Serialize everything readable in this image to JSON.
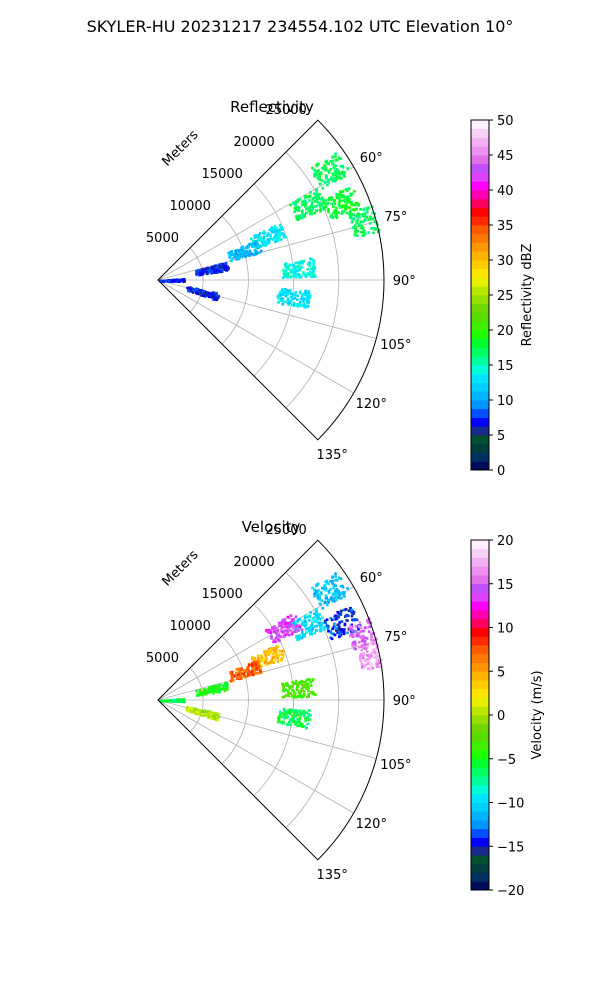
{
  "suptitle": "SKYLER-HU  20231217  234554.102 UTC Elevation 10°",
  "chart_data": [
    {
      "type": "ppi-sector",
      "title": "Reflectivity",
      "range_label": "Meters",
      "range_ticks": [
        5000,
        10000,
        15000,
        20000,
        25000
      ],
      "range_max_m": 25000,
      "azimuth_range_deg": [
        45,
        135
      ],
      "azimuth_ticks": [
        "60°",
        "75°",
        "90°",
        "105°",
        "120°",
        "135°"
      ],
      "grid": true,
      "colorbar": {
        "label": "Reflectivity dBZ",
        "min": 0,
        "max": 50,
        "ticks": [
          "0",
          "5",
          "10",
          "15",
          "20",
          "25",
          "30",
          "35",
          "40",
          "45",
          "50"
        ],
        "colors": [
          "#000d5a",
          "#00305f",
          "#003d3d",
          "#005030",
          "#1a2a8c",
          "#0000ff",
          "#0050ff",
          "#0096ff",
          "#00b4ff",
          "#00d0ff",
          "#00e4ff",
          "#00ffd8",
          "#00ff9c",
          "#00ff60",
          "#00ff2c",
          "#20ff00",
          "#40ee00",
          "#58dd00",
          "#70d800",
          "#96e000",
          "#bce800",
          "#e6f000",
          "#ffe600",
          "#ffcc00",
          "#ffb400",
          "#ff9600",
          "#ff7800",
          "#ff5a00",
          "#ff2a00",
          "#ff0000",
          "#ff0060",
          "#ff00b0",
          "#ff00ff",
          "#e040ff",
          "#c050ff",
          "#e070e8",
          "#ee90f0",
          "#f4b0f4",
          "#f8d0f8",
          "#fff0ff"
        ]
      },
      "echo_regions": [
        {
          "az_deg": 57,
          "range_m": 22500,
          "value": 17
        },
        {
          "az_deg": 63,
          "range_m": 18500,
          "value": 17
        },
        {
          "az_deg": 67,
          "range_m": 22000,
          "value": 18
        },
        {
          "az_deg": 74,
          "range_m": 24000,
          "value": 17
        },
        {
          "az_deg": 68,
          "range_m": 13000,
          "value": 13
        },
        {
          "az_deg": 71,
          "range_m": 10000,
          "value": 11
        },
        {
          "az_deg": 78,
          "range_m": 6000,
          "value": 7
        },
        {
          "az_deg": 85,
          "range_m": 15500,
          "value": 14
        },
        {
          "az_deg": 88,
          "range_m": 1000,
          "value": 7
        },
        {
          "az_deg": 97,
          "range_m": 15000,
          "value": 13
        },
        {
          "az_deg": 105,
          "range_m": 5000,
          "value": 7
        }
      ]
    },
    {
      "type": "ppi-sector",
      "title": "Velocity",
      "range_label": "Meters",
      "range_ticks": [
        5000,
        10000,
        15000,
        20000,
        25000
      ],
      "range_max_m": 25000,
      "azimuth_range_deg": [
        45,
        135
      ],
      "azimuth_ticks": [
        "60°",
        "75°",
        "90°",
        "105°",
        "120°",
        "135°"
      ],
      "grid": true,
      "colorbar": {
        "label": "Velocity (m/s)",
        "min": -20,
        "max": 20,
        "ticks": [
          "−20",
          "−15",
          "−10",
          "−5",
          "0",
          "5",
          "10",
          "15",
          "20"
        ],
        "colors": [
          "#000d5a",
          "#00305f",
          "#003d3d",
          "#005030",
          "#1a2a8c",
          "#0000ff",
          "#0050ff",
          "#0096ff",
          "#00b4ff",
          "#00d0ff",
          "#00e4ff",
          "#00ffd8",
          "#00ff9c",
          "#00ff60",
          "#00ff2c",
          "#20ff00",
          "#40ee00",
          "#58dd00",
          "#70d800",
          "#96e000",
          "#bce800",
          "#e6f000",
          "#ffe600",
          "#ffcc00",
          "#ffb400",
          "#ff9600",
          "#ff7800",
          "#ff5a00",
          "#ff2a00",
          "#ff0000",
          "#ff0060",
          "#ff00b0",
          "#ff00ff",
          "#e040ff",
          "#c050ff",
          "#e070e8",
          "#ee90f0",
          "#f4b0f4",
          "#f8d0f8",
          "#fff0ff"
        ]
      },
      "echo_regions": [
        {
          "az_deg": 57,
          "range_m": 22500,
          "value": -11
        },
        {
          "az_deg": 63,
          "range_m": 18500,
          "value": -10
        },
        {
          "az_deg": 60,
          "range_m": 16000,
          "value": 14
        },
        {
          "az_deg": 67,
          "range_m": 22000,
          "value": -14
        },
        {
          "az_deg": 72,
          "range_m": 24000,
          "value": 15
        },
        {
          "az_deg": 78,
          "range_m": 24500,
          "value": 17
        },
        {
          "az_deg": 68,
          "range_m": 13000,
          "value": 4
        },
        {
          "az_deg": 71,
          "range_m": 10000,
          "value": 7
        },
        {
          "az_deg": 78,
          "range_m": 6000,
          "value": -5
        },
        {
          "az_deg": 85,
          "range_m": 15500,
          "value": -3
        },
        {
          "az_deg": 88,
          "range_m": 1000,
          "value": -6
        },
        {
          "az_deg": 97,
          "range_m": 15000,
          "value": -6
        },
        {
          "az_deg": 105,
          "range_m": 5000,
          "value": 0
        }
      ]
    }
  ]
}
